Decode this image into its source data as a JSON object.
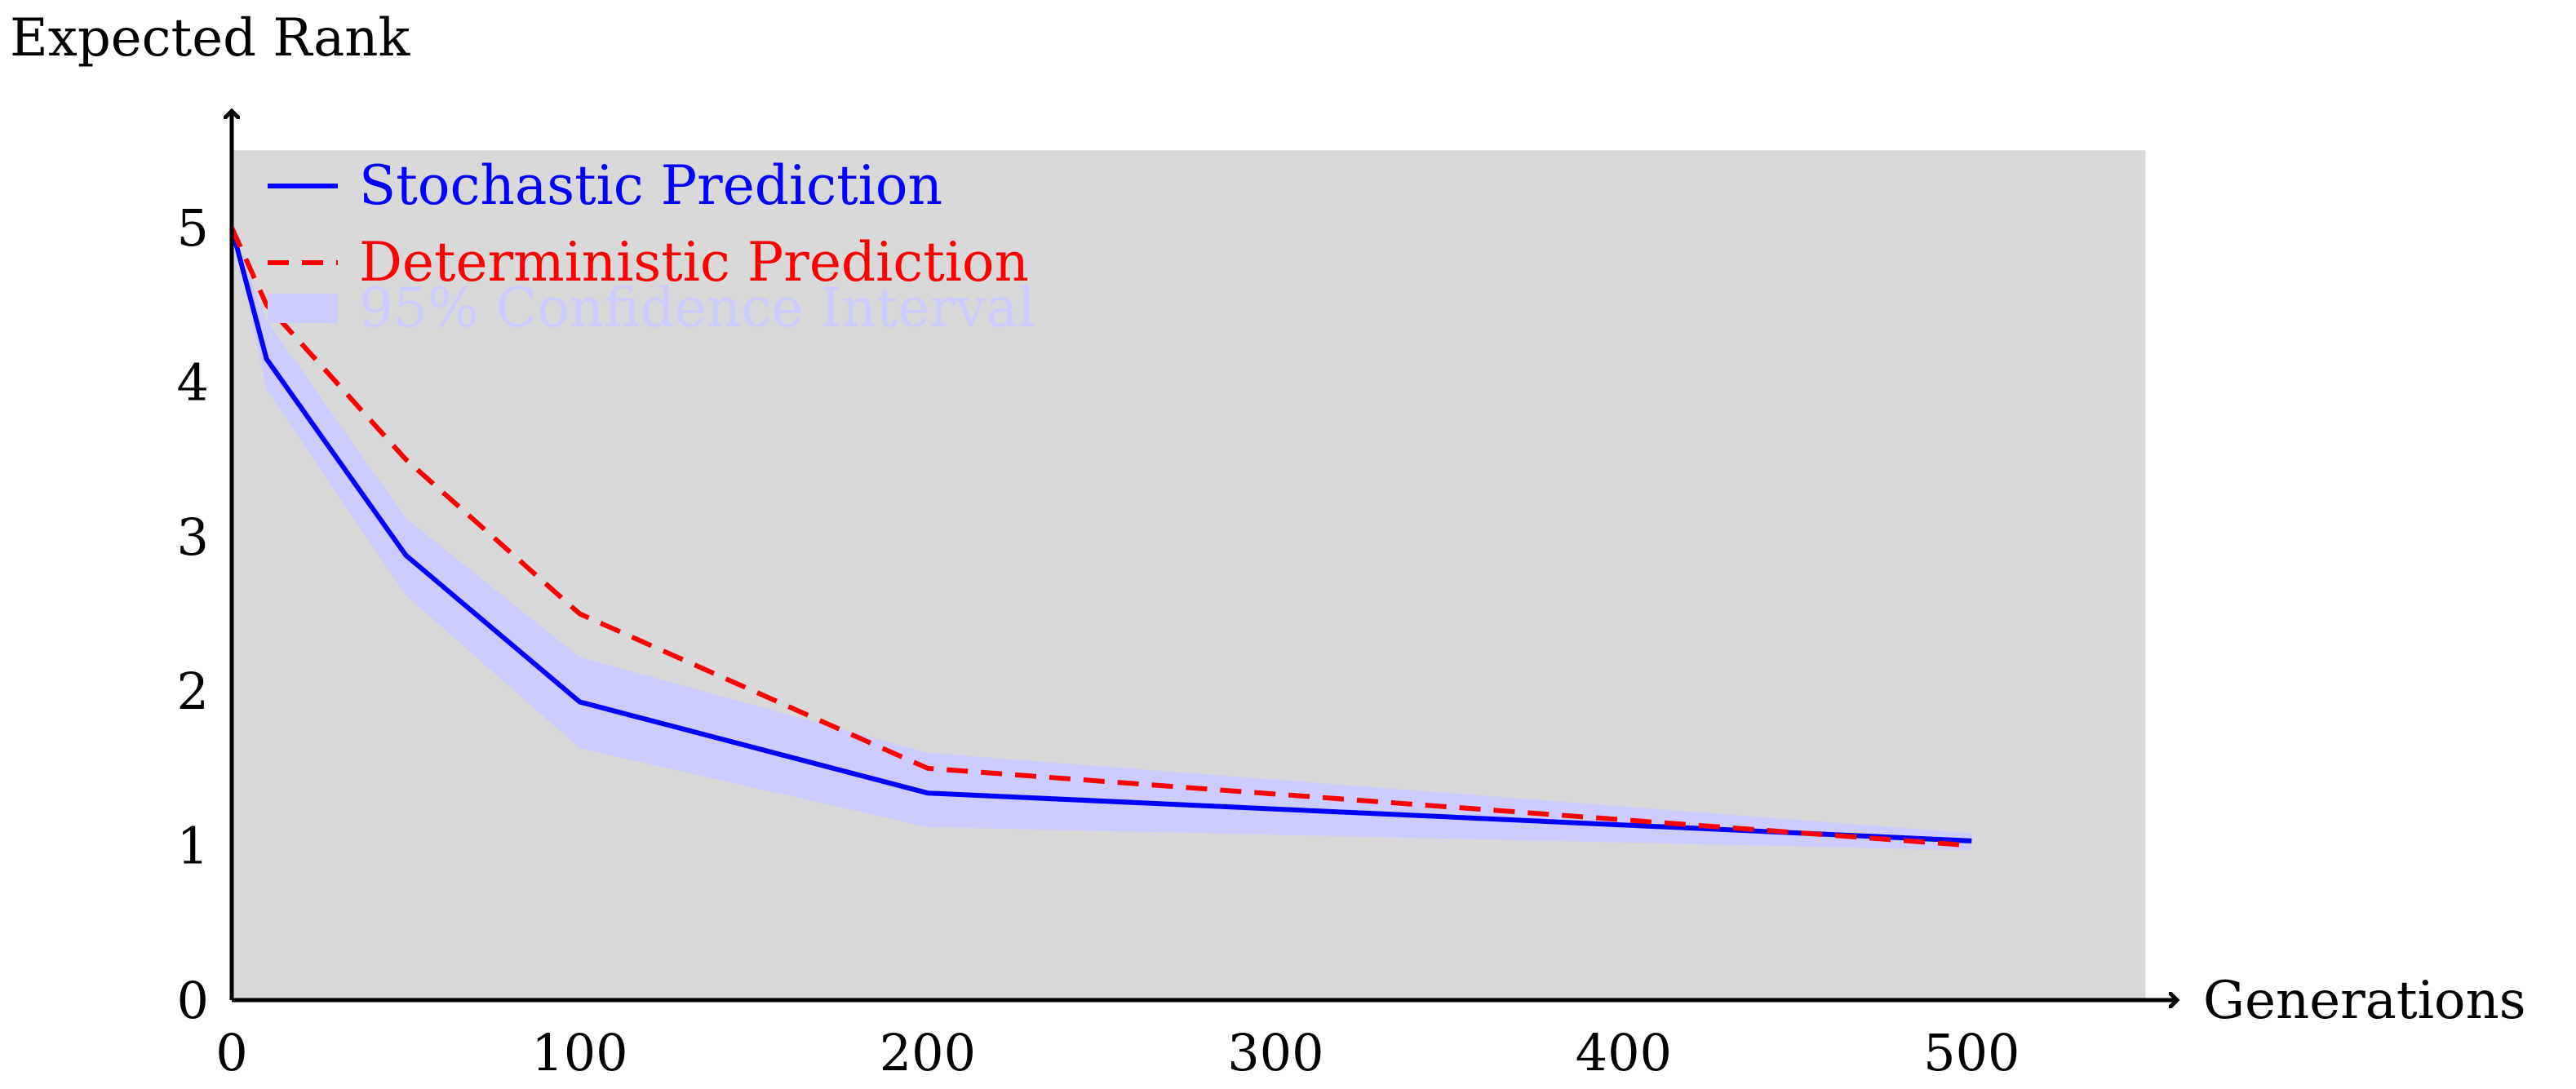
{
  "chart_data": {
    "type": "line",
    "title": "",
    "xlabel": "Generations",
    "ylabel": "Expected Rank",
    "xlim": [
      0,
      550
    ],
    "ylim": [
      0,
      5.5
    ],
    "xticks": [
      0,
      100,
      200,
      300,
      400,
      500
    ],
    "yticks": [
      0,
      1,
      2,
      3,
      4,
      5
    ],
    "x_tick_labels": [
      "0",
      "100",
      "200",
      "300",
      "400",
      "500"
    ],
    "y_tick_labels": [
      "0",
      "1",
      "2",
      "3",
      "4",
      "5"
    ],
    "grid": false,
    "plot_background": "#d9d9d9",
    "legend_position": "top-left",
    "legend": [
      {
        "label": "Stochastic Prediction",
        "color": "#0000ff",
        "style": "solid"
      },
      {
        "label": "Deterministic Prediction",
        "color": "#ff0000",
        "style": "dashed"
      },
      {
        "label": "95% Confidence Interval",
        "color": "#ccccff",
        "style": "band"
      }
    ],
    "x": [
      0,
      10,
      50,
      100,
      200,
      500
    ],
    "series": [
      {
        "name": "Stochastic Prediction",
        "color": "#0000ff",
        "style": "solid",
        "values": [
          5.0,
          4.15,
          2.88,
          1.93,
          1.34,
          1.03
        ]
      },
      {
        "name": "Deterministic Prediction",
        "color": "#ff0000",
        "style": "dashed",
        "values": [
          5.0,
          4.5,
          3.5,
          2.5,
          1.5,
          1.0
        ]
      }
    ],
    "confidence_interval": {
      "name": "95% Confidence Interval",
      "color": "#ccccff",
      "upper": [
        5.0,
        4.4,
        3.12,
        2.22,
        1.6,
        1.08
      ],
      "lower": [
        5.0,
        3.95,
        2.62,
        1.63,
        1.12,
        0.97
      ]
    }
  }
}
